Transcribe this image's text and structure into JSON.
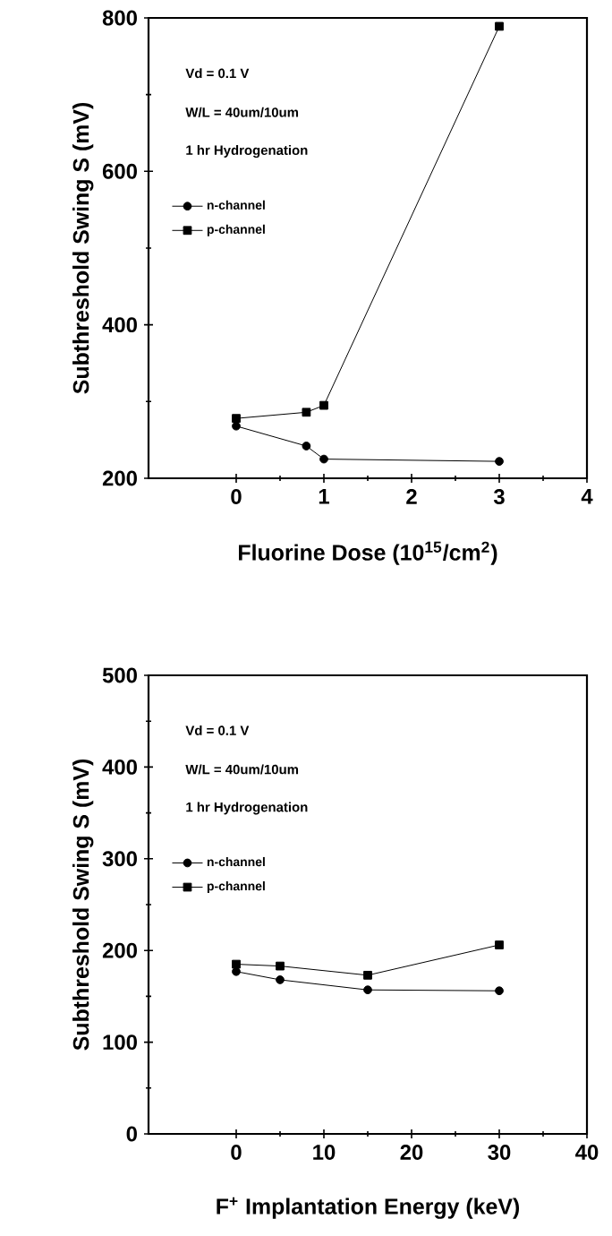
{
  "chart_data": [
    {
      "type": "line",
      "xlabel": "Fluorine Dose (10$^{15}$/cm$^{2}$)",
      "ylabel": "Subthreshold Swing S (mV)",
      "annotations": [
        "Vd = 0.1 V",
        "W/L = 40um/10um",
        "1 hr Hydrogenation"
      ],
      "xlim": [
        -1,
        4
      ],
      "ylim": [
        200,
        800
      ],
      "xticks": [
        0,
        1,
        2,
        3,
        4
      ],
      "yticks": [
        200,
        400,
        600,
        800
      ],
      "legend": "top left",
      "grid": false,
      "series": [
        {
          "name": "n-channel",
          "color": "#000000",
          "marker": "circle",
          "x": [
            0,
            0.8,
            1,
            3
          ],
          "values": [
            268,
            242,
            225,
            222
          ]
        },
        {
          "name": "p-channel",
          "color": "#000000",
          "marker": "square",
          "x": [
            0,
            0.8,
            1,
            3
          ],
          "values": [
            278,
            286,
            295,
            789
          ]
        }
      ]
    },
    {
      "type": "line",
      "xlabel": "F$^{+}$ Implantation Energy (keV)",
      "ylabel": "Subthreshold Swing S (mV)",
      "annotations": [
        "Vd = 0.1 V",
        "W/L = 40um/10um",
        "1 hr Hydrogenation"
      ],
      "xlim": [
        -10,
        40
      ],
      "ylim": [
        0,
        500
      ],
      "xticks": [
        0,
        10,
        20,
        30,
        40
      ],
      "yticks": [
        0,
        100,
        200,
        300,
        400,
        500
      ],
      "legend": "top left",
      "grid": false,
      "series": [
        {
          "name": "n-channel",
          "color": "#000000",
          "marker": "circle",
          "x": [
            0,
            5,
            15,
            30
          ],
          "values": [
            177,
            168,
            157,
            156
          ]
        },
        {
          "name": "p-channel",
          "color": "#000000",
          "marker": "square",
          "x": [
            0,
            5,
            15,
            30
          ],
          "values": [
            185,
            183,
            173,
            206
          ]
        }
      ]
    }
  ]
}
